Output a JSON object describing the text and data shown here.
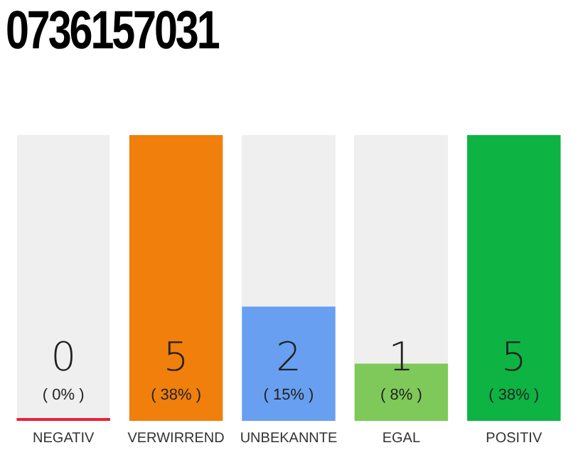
{
  "chart_data": {
    "type": "bar",
    "title": "0736157031",
    "categories": [
      "NEGATIV",
      "VERWIRREND",
      "UNBEKANNTE",
      "EGAL",
      "POSITIV"
    ],
    "values": [
      0,
      5,
      2,
      1,
      5
    ],
    "colors": [
      "#e8213a",
      "#f07f0c",
      "#689ff0",
      "#7ec95a",
      "#0db444"
    ],
    "value_labels": [
      "0\n( 0% )",
      "5\n( 38% )",
      "2\n( 15% )",
      "1\n( 8% )",
      "5\n( 38% )"
    ],
    "ylim": [
      0,
      5
    ],
    "tick_labels": "x",
    "grid": false,
    "legend": false
  }
}
